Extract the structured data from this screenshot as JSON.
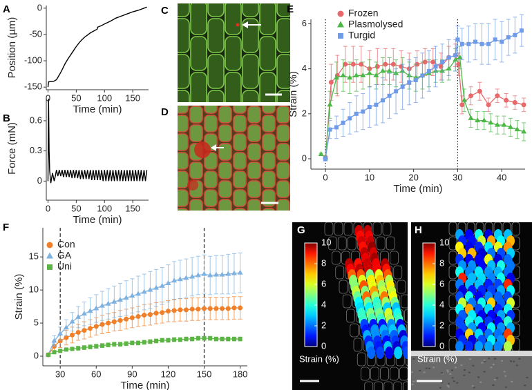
{
  "chart_data": [
    {
      "panel": "A",
      "type": "line",
      "xlabel": "Time (min)",
      "ylabel": "Position (µm)",
      "xlim": [
        -3,
        178
      ],
      "ylim": [
        -155,
        5
      ],
      "xticks": [
        0,
        50,
        100,
        150
      ],
      "yticks": [
        0,
        -50,
        -100,
        -150
      ],
      "x": [
        0,
        1,
        10,
        15,
        20,
        25,
        30,
        35,
        40,
        45,
        50,
        55,
        60,
        65,
        70,
        75,
        80,
        87,
        88,
        95,
        100,
        110,
        120,
        130,
        140,
        150,
        160,
        175
      ],
      "series": [
        {
          "color": "#000000",
          "values": [
            -150,
            -140,
            -139,
            -136,
            -127,
            -117,
            -106,
            -97,
            -89,
            -81,
            -73,
            -66,
            -60,
            -55,
            -51,
            -47,
            -44,
            -40,
            -36,
            -33,
            -30,
            -25,
            -19,
            -15,
            -11,
            -7,
            -4,
            2
          ]
        }
      ]
    },
    {
      "panel": "B",
      "type": "line",
      "xlabel": "Time (min)",
      "ylabel": "Force (mN)",
      "xlim": [
        -3,
        178
      ],
      "ylim": [
        -0.19,
        0.84
      ],
      "xticks": [
        0,
        50,
        100,
        150
      ],
      "yticks": [
        0,
        0.3,
        0.6
      ],
      "x": [
        0,
        1,
        2,
        3,
        5,
        8,
        11,
        13,
        15,
        17.5,
        20,
        22.5,
        25,
        27.5,
        30,
        32.5,
        35,
        37.5,
        40,
        42.5,
        45,
        47.5,
        50,
        52.5,
        55,
        57.5,
        60,
        62.5,
        65,
        67.5,
        70,
        72.5,
        75,
        77.5,
        80,
        82.5,
        85,
        87.5,
        90,
        92.5,
        95,
        97.5,
        100,
        102.5,
        105,
        107.5,
        110,
        112.5,
        115,
        117.5,
        120,
        122.5,
        125,
        127.5,
        130,
        132.5,
        135,
        137.5,
        140,
        142.5,
        145,
        147.5,
        150,
        152.5,
        155,
        157.5,
        160,
        162.5,
        165,
        167.5,
        170,
        172.5,
        175
      ],
      "series": [
        {
          "color": "#000000",
          "values": [
            0.0,
            0.82,
            0.3,
            0.1,
            -0.02,
            0.08,
            0.0,
            0.05,
            0.11,
            0.05,
            0.11,
            0.05,
            0.11,
            0.04,
            0.11,
            0.04,
            0.11,
            0.04,
            0.11,
            0.03,
            0.11,
            0.03,
            0.11,
            0.03,
            0.11,
            0.02,
            0.11,
            0.02,
            0.11,
            0.02,
            0.11,
            0.02,
            0.11,
            0.01,
            0.11,
            0.01,
            0.11,
            0.01,
            0.11,
            0.01,
            0.11,
            0.0,
            0.11,
            0.0,
            0.11,
            0.0,
            0.11,
            0.0,
            0.11,
            0.0,
            0.11,
            0.0,
            0.11,
            0.0,
            0.11,
            0.0,
            0.11,
            0.0,
            0.11,
            0.0,
            0.11,
            0.0,
            0.11,
            0.0,
            0.11,
            0.0,
            0.11,
            0.0,
            0.11,
            0.0,
            0.11,
            0.0,
            0.11
          ]
        }
      ]
    },
    {
      "panel": "C",
      "type": "image"
    },
    {
      "panel": "D",
      "type": "image"
    },
    {
      "panel": "E",
      "type": "line",
      "xlabel": "Time (min)",
      "ylabel": "Strain (%)",
      "legend": "upper left",
      "xlim": [
        -3.3,
        45.3
      ],
      "ylim": [
        -0.46,
        6.2
      ],
      "xticks": [
        0,
        10,
        20,
        30,
        40
      ],
      "yticks": [
        0,
        2,
        4,
        6
      ],
      "vlines": [
        0,
        30
      ],
      "vline_style": "dotted",
      "series": [
        {
          "name": "Frozen",
          "color": "#e8696b",
          "marker": "circle",
          "x": [
            0,
            1.3,
            2.7,
            4.5,
            6.3,
            8.1,
            10,
            11.8,
            13.6,
            15.4,
            17.2,
            19,
            20.8,
            22.6,
            24.4,
            26.2,
            28,
            29.5,
            30.2,
            31,
            33,
            35,
            37,
            39,
            41,
            43,
            45
          ],
          "values": [
            0.05,
            3.4,
            3.7,
            4.2,
            4.2,
            4.2,
            4.0,
            4.1,
            4.2,
            4.2,
            4.1,
            4.0,
            4.2,
            4.3,
            4.3,
            4.1,
            4.5,
            4.6,
            4.2,
            2.4,
            2.8,
            3.0,
            2.4,
            2.8,
            2.6,
            2.5,
            2.4
          ],
          "errors": [
            0.1,
            0.8,
            0.9,
            0.8,
            0.8,
            0.8,
            0.8,
            0.8,
            0.7,
            0.7,
            0.7,
            0.7,
            0.6,
            0.6,
            0.6,
            0.6,
            0.5,
            0.5,
            0.5,
            0.4,
            0.4,
            0.4,
            0.3,
            0.3,
            0.3,
            0.3,
            0.3
          ]
        },
        {
          "name": "Plasmolysed",
          "color": "#4cb848",
          "marker": "triangle",
          "x": [
            -1,
            0,
            1,
            2.5,
            4,
            5.5,
            7,
            8.5,
            10,
            11.5,
            13,
            14.5,
            16,
            17.5,
            19,
            20.5,
            22,
            23.5,
            25,
            26.5,
            28,
            29.5,
            30.5,
            31.5,
            33,
            34.5,
            36,
            37.5,
            39,
            40.5,
            42,
            43.5,
            45
          ],
          "values": [
            0.2,
            0.05,
            2.4,
            3.6,
            3.7,
            3.6,
            3.7,
            3.7,
            3.8,
            3.7,
            3.9,
            3.9,
            3.8,
            3.9,
            3.7,
            3.6,
            3.7,
            3.8,
            3.9,
            3.9,
            4.0,
            4.4,
            4.5,
            2.6,
            1.8,
            1.7,
            1.7,
            1.6,
            1.5,
            1.5,
            1.4,
            1.3,
            1.2
          ],
          "errors": [
            0.05,
            0.05,
            0.6,
            0.7,
            0.7,
            0.7,
            0.7,
            0.6,
            0.6,
            0.6,
            0.6,
            0.6,
            0.6,
            0.6,
            0.6,
            0.6,
            0.6,
            0.6,
            0.5,
            0.5,
            0.5,
            0.5,
            0.5,
            0.5,
            0.4,
            0.4,
            0.4,
            0.4,
            0.4,
            0.4,
            0.4,
            0.4,
            0.4
          ]
        },
        {
          "name": "Turgid",
          "color": "#6f9be8",
          "marker": "square",
          "x": [
            0,
            1,
            2.5,
            4,
            5.5,
            7,
            8.5,
            10,
            11.5,
            13,
            14.5,
            16,
            17.5,
            19,
            20.5,
            22,
            23.5,
            25,
            26.5,
            28,
            29.5,
            30,
            31,
            32.5,
            34,
            35.5,
            37,
            38.5,
            40,
            41.5,
            43,
            44.5
          ],
          "values": [
            0.0,
            1.3,
            1.4,
            1.6,
            1.8,
            2.0,
            2.1,
            2.3,
            2.4,
            2.6,
            2.8,
            3.0,
            3.2,
            3.4,
            3.5,
            3.7,
            3.9,
            4.1,
            4.3,
            4.5,
            4.6,
            5.3,
            5.1,
            5.1,
            5.2,
            5.1,
            5.1,
            5.3,
            5.2,
            5.4,
            5.5,
            5.7
          ],
          "errors": [
            0.1,
            0.4,
            0.5,
            0.6,
            0.7,
            0.8,
            0.8,
            0.9,
            0.9,
            1.0,
            1.0,
            1.0,
            1.0,
            1.0,
            1.0,
            1.0,
            0.9,
            0.9,
            0.8,
            0.8,
            0.7,
            0.6,
            0.7,
            0.8,
            0.8,
            0.9,
            0.9,
            0.9,
            0.9,
            0.8,
            0.8,
            0.7
          ]
        }
      ]
    },
    {
      "panel": "F",
      "type": "line",
      "xlabel": "Time (min)",
      "ylabel": "Strain (%)",
      "legend": "upper left",
      "xlim": [
        15.5,
        186
      ],
      "ylim": [
        -1.46,
        19.4
      ],
      "xticks": [
        30,
        60,
        90,
        120,
        150,
        180
      ],
      "yticks": [
        0,
        5,
        10,
        15
      ],
      "vlines": [
        30,
        150
      ],
      "vline_style": "dashed",
      "x": [
        20,
        25,
        30,
        35,
        40,
        45,
        50,
        55,
        60,
        65,
        70,
        75,
        80,
        85,
        90,
        95,
        100,
        105,
        110,
        115,
        120,
        125,
        130,
        135,
        140,
        145,
        150,
        155,
        160,
        165,
        170,
        175,
        180
      ],
      "series": [
        {
          "name": "Con",
          "color": "#f07f2a",
          "marker": "circle",
          "values": [
            0.2,
            1.5,
            2.3,
            2.8,
            3.2,
            3.6,
            3.9,
            4.2,
            4.5,
            4.8,
            5.0,
            5.2,
            5.4,
            5.6,
            5.8,
            6.0,
            6.2,
            6.3,
            6.5,
            6.6,
            6.8,
            6.9,
            7.0,
            7.0,
            7.1,
            7.1,
            7.2,
            7.2,
            7.2,
            7.2,
            7.2,
            7.3,
            7.3
          ],
          "errors": [
            0.1,
            0.8,
            1.0,
            1.1,
            1.2,
            1.2,
            1.3,
            1.3,
            1.3,
            1.4,
            1.4,
            1.4,
            1.5,
            1.5,
            1.5,
            1.5,
            1.6,
            1.6,
            1.6,
            1.6,
            1.6,
            1.7,
            1.7,
            1.7,
            1.7,
            1.7,
            1.7,
            1.7,
            1.7,
            1.7,
            1.7,
            1.7,
            1.7
          ]
        },
        {
          "name": "GA",
          "color": "#7fb2e0",
          "marker": "triangle",
          "values": [
            0.2,
            2.3,
            3.4,
            4.3,
            5.2,
            5.9,
            6.4,
            6.8,
            7.2,
            7.6,
            7.9,
            8.2,
            8.5,
            8.8,
            9.1,
            9.4,
            9.7,
            10.0,
            10.3,
            10.6,
            11.0,
            11.4,
            11.6,
            11.8,
            12.0,
            12.2,
            12.4,
            12.2,
            12.3,
            12.3,
            12.4,
            12.5,
            12.6
          ],
          "errors": [
            0.1,
            0.8,
            1.0,
            1.2,
            1.4,
            1.6,
            1.8,
            2.0,
            2.1,
            2.2,
            2.3,
            2.4,
            2.5,
            2.6,
            2.6,
            2.7,
            2.7,
            2.8,
            2.8,
            2.8,
            2.8,
            2.9,
            2.9,
            2.9,
            2.9,
            2.9,
            2.9,
            2.9,
            2.9,
            2.9,
            3.0,
            3.0,
            3.0
          ]
        },
        {
          "name": "Uni",
          "color": "#5ab542",
          "marker": "square",
          "values": [
            0.2,
            0.6,
            0.8,
            1.0,
            1.1,
            1.2,
            1.3,
            1.4,
            1.5,
            1.6,
            1.7,
            1.8,
            1.8,
            1.9,
            2.0,
            2.0,
            2.1,
            2.2,
            2.3,
            2.4,
            2.4,
            2.5,
            2.5,
            2.6,
            2.6,
            2.7,
            2.7,
            2.7,
            2.6,
            2.6,
            2.6,
            2.6,
            2.6
          ],
          "errors": [
            0.05,
            0.2,
            0.2,
            0.2,
            0.2,
            0.3,
            0.3,
            0.3,
            0.3,
            0.3,
            0.3,
            0.3,
            0.3,
            0.3,
            0.3,
            0.3,
            0.3,
            0.3,
            0.3,
            0.3,
            0.3,
            0.3,
            0.3,
            0.3,
            0.3,
            0.3,
            0.3,
            0.3,
            0.3,
            0.3,
            0.3,
            0.3,
            0.3
          ]
        }
      ]
    },
    {
      "panel": "G",
      "type": "colorbar",
      "label": "Strain (%)",
      "ylim": [
        0,
        10
      ],
      "yticks": [
        0,
        2,
        4,
        6,
        8,
        10
      ]
    },
    {
      "panel": "H",
      "type": "colorbar",
      "label": "Strain (%)",
      "ylim": [
        0,
        10
      ],
      "yticks": [
        0,
        2,
        4,
        6,
        8,
        10
      ]
    }
  ]
}
